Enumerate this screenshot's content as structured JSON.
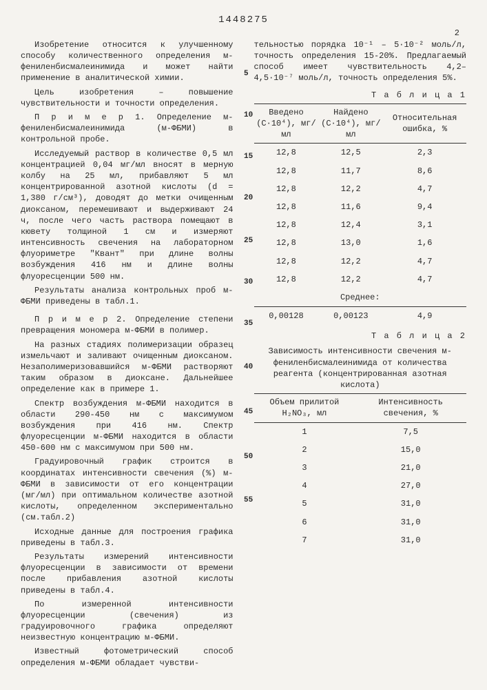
{
  "docnum": "1448275",
  "pagenum": "2",
  "left": {
    "paras": [
      "Изобретение относится к улучшенному способу количественного определения м-фениленбисмалеинимида и может найти применение в аналитической химии.",
      "Цель изобретения – повышение чувствительности и точности определения.",
      "П р и м е р  1. Определение м-фениленбисмалеинимида (м-ФБМИ) в контрольной пробе.",
      "Исследуемый раствор в количестве 0,5 мл концентрацией 0,04 мг/мл вносят в мерную колбу на 25 мл, прибавляют 5 мл концентрированной азотной кислоты (d = 1,380 г/см³), доводят до метки очищенным диоксаном, перемешивают и выдерживают 24 ч, после чего часть раствора помещают в кювету толщиной 1 см и измеряют интенсивность свечения на лабораторном флуориметре \"Квант\" при длине волны возбуждения 416 нм и длине волны флуоресценции 500 нм.",
      "Результаты анализа контрольных проб м-ФБМИ приведены в табл.1.",
      "П р и м е р 2. Определение степени превращения мономера м-ФБМИ в полимер.",
      "На разных стадиях полимеризации образец измельчают и заливают очищенным диоксаном. Незаполимеризовавшийся м-ФБМИ растворяют таким образом в диоксане. Дальнейшее определение как в примере 1.",
      "Спектр возбуждения м-ФБМИ находится в области 290-450 нм с максимумом возбуждения при 416 нм. Спектр флуоресценции м-ФБМИ находится в области 450-600 нм с максимумом при 500 нм.",
      "Градуировочный график строится в координатах интенсивности свечения (%) м-ФБМИ в зависимости от его концентрации (мг/мл) при оптимальном количестве азотной кислоты, определенном экспериментально (см.табл.2)",
      "Исходные данные для построения графика приведены в табл.3.",
      "Результаты измерений интенсивности флуоресценции в зависимости от времени после прибавления азотной кислоты приведены в табл.4.",
      "По измеренной интенсивности флуоресценции (свечения) из градуировочного графика определяют неизвестную концентрацию м-ФБМИ.",
      "Известный фотометрический способ определения м-ФБМИ обладает чувстви-"
    ]
  },
  "right": {
    "top_para": "тельностью порядка 10⁻¹ – 5·10⁻² моль/л, точность определения 15-20%. Предлагаемый способ имеет чувствительность 4,2– 4,5·10⁻⁷ моль/л, точность определения 5%.",
    "table1_title": "Т а б л и ц а 1",
    "table1_head": [
      "Введено (C·10⁴), мг/мл",
      "Найдено (C·10⁴), мг/мл",
      "Относительная ошибка, %"
    ],
    "table1_rows": [
      [
        "12,8",
        "12,5",
        "2,3"
      ],
      [
        "12,8",
        "11,7",
        "8,6"
      ],
      [
        "12,8",
        "12,2",
        "4,7"
      ],
      [
        "12,8",
        "11,6",
        "9,4"
      ],
      [
        "12,8",
        "12,4",
        "3,1"
      ],
      [
        "12,8",
        "13,0",
        "1,6"
      ],
      [
        "12,8",
        "12,2",
        "4,7"
      ],
      [
        "12,8",
        "12,2",
        "4,7"
      ]
    ],
    "table1_mean_label": "Среднее:",
    "table1_mean": [
      "0,00128",
      "0,00123",
      "4,9"
    ],
    "table2_title": "Т а б л и ц а 2",
    "table2_caption": "Зависимость интенсивности свечения м-фениленбисмалеинимида от количества реагента (концентрированная азотная кислота)",
    "table2_head": [
      "Объем прилитой H₂NO₃, мл",
      "Интенсивность свечения, %"
    ],
    "table2_rows": [
      [
        "1",
        "7,5"
      ],
      [
        "2",
        "15,0"
      ],
      [
        "3",
        "21,0"
      ],
      [
        "4",
        "27,0"
      ],
      [
        "5",
        "31,0"
      ],
      [
        "6",
        "31,0"
      ],
      [
        "7",
        "31,0"
      ]
    ]
  },
  "linenums": [
    5,
    10,
    15,
    20,
    25,
    30,
    35,
    40,
    45,
    50,
    55
  ]
}
